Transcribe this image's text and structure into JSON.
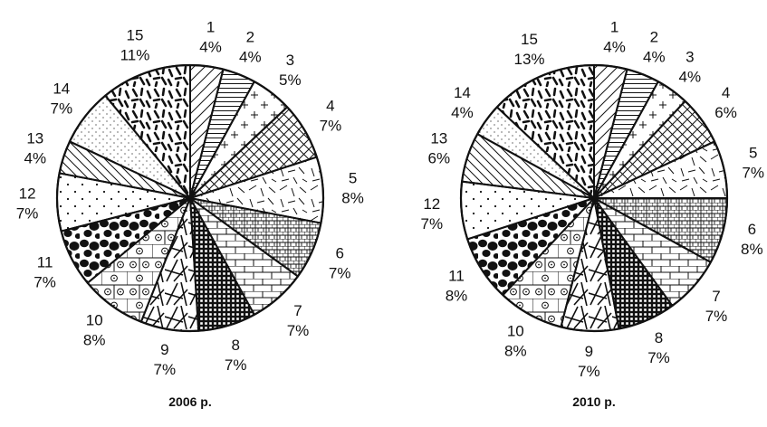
{
  "chart_data": [
    {
      "type": "pie",
      "title": "2006 р.",
      "categories": [
        "1",
        "2",
        "3",
        "4",
        "5",
        "6",
        "7",
        "8",
        "9",
        "10",
        "11",
        "12",
        "13",
        "14",
        "15"
      ],
      "values": [
        4,
        4,
        5,
        7,
        8,
        7,
        7,
        7,
        7,
        8,
        7,
        7,
        4,
        7,
        11
      ],
      "value_labels": [
        "4%",
        "4%",
        "5%",
        "7%",
        "8%",
        "7%",
        "7%",
        "7%",
        "7%",
        "8%",
        "7%",
        "7%",
        "4%",
        "7%",
        "11%"
      ],
      "patterns": [
        "diag-lines",
        "hstripe",
        "plus",
        "crosshatch",
        "random-dashes",
        "brick-grid",
        "brick",
        "checker",
        "sticks",
        "dot-brick",
        "blobs",
        "dots",
        "diag-lines-rev",
        "fine-dots",
        "thick-dashes"
      ],
      "start": "12 o'clock",
      "direction": "clockwise",
      "legend": "none"
    },
    {
      "type": "pie",
      "title": "2010 р.",
      "categories": [
        "1",
        "2",
        "3",
        "4",
        "5",
        "6",
        "7",
        "8",
        "9",
        "10",
        "11",
        "12",
        "13",
        "14",
        "15"
      ],
      "values": [
        4,
        4,
        4,
        6,
        7,
        8,
        7,
        7,
        7,
        8,
        8,
        7,
        6,
        4,
        13
      ],
      "value_labels": [
        "4%",
        "4%",
        "4%",
        "6%",
        "7%",
        "8%",
        "7%",
        "7%",
        "7%",
        "8%",
        "8%",
        "7%",
        "6%",
        "4%",
        "13%"
      ],
      "patterns": [
        "diag-lines",
        "hstripe",
        "plus",
        "crosshatch",
        "random-dashes",
        "brick-grid",
        "brick",
        "checker",
        "sticks",
        "dot-brick",
        "blobs",
        "dots",
        "diag-lines-rev",
        "fine-dots",
        "thick-dashes"
      ],
      "start": "12 o'clock",
      "direction": "clockwise",
      "legend": "none"
    }
  ],
  "colors": {
    "ink": "#111111",
    "background": "#ffffff"
  }
}
